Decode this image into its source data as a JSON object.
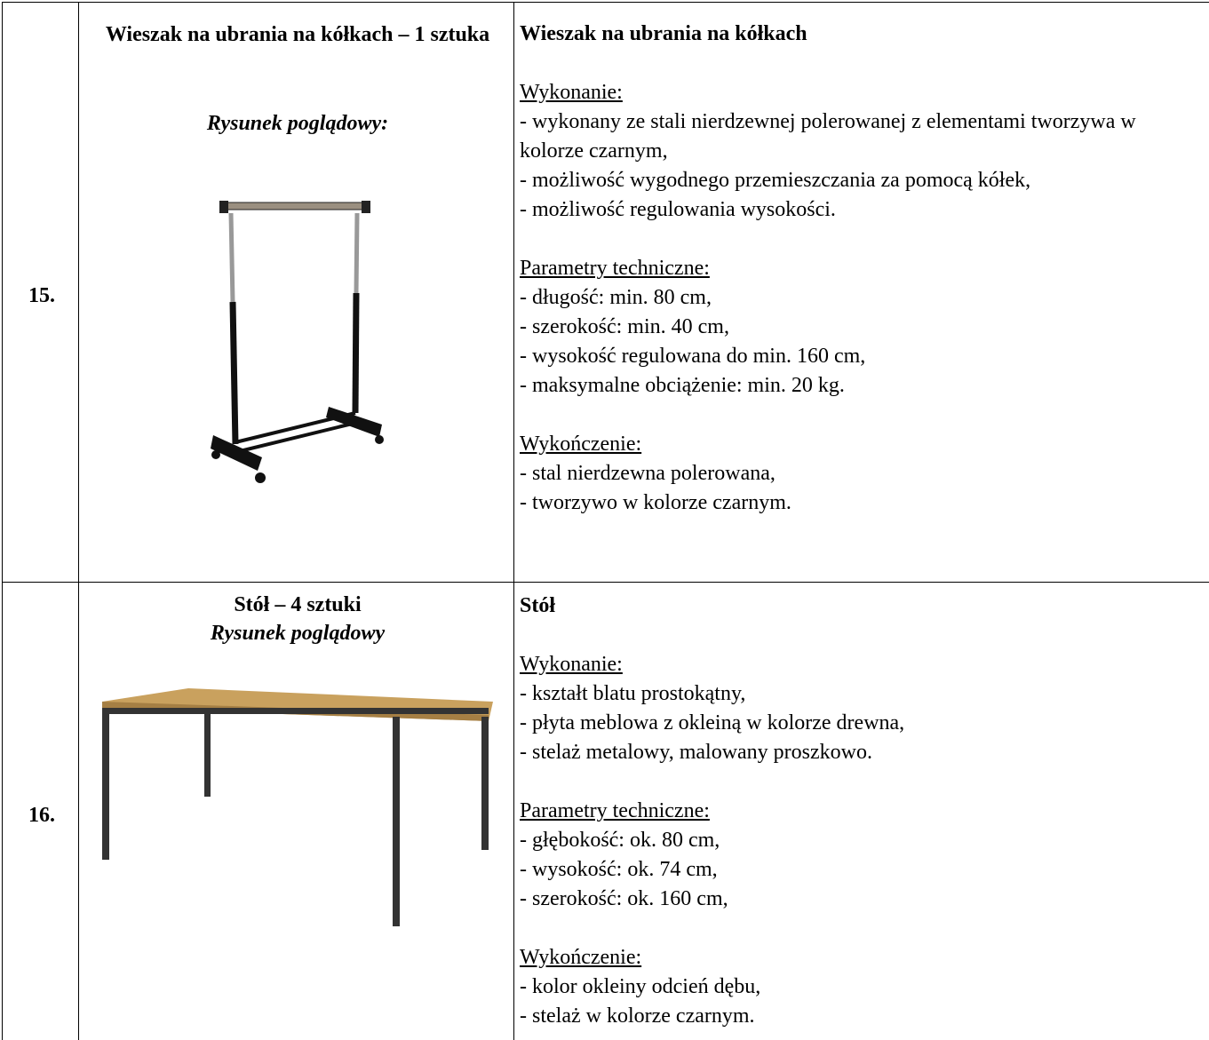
{
  "table": {
    "rows": [
      {
        "number": "15.",
        "name": "Wieszak na ubrania na kółkach – 1 sztuka",
        "drawing_label": "Rysunek poglądowy:",
        "heading": "Wieszak na ubrania na kółkach",
        "sections": [
          {
            "title": "Wykonanie:",
            "items": [
              "- wykonany ze stali nierdzewnej polerowanej z elementami tworzywa w kolorze czarnym,",
              "- możliwość wygodnego przemieszczania za pomocą kółek,",
              "- możliwość regulowania wysokości."
            ]
          },
          {
            "title": "Parametry techniczne:",
            "items": [
              "- długość: min. 80 cm,",
              "- szerokość: min. 40 cm,",
              "- wysokość regulowana do min. 160 cm,",
              "- maksymalne obciążenie: min. 20 kg."
            ]
          },
          {
            "title": "Wykończenie:",
            "items": [
              "- stal nierdzewna polerowana,",
              "- tworzywo w kolorze czarnym."
            ]
          }
        ]
      },
      {
        "number": "16.",
        "name": "Stół – 4 sztuki",
        "drawing_label": "Rysunek poglądowy",
        "heading": "Stół",
        "sections": [
          {
            "title": "Wykonanie:",
            "items": [
              "- kształt blatu prostokątny,",
              "- płyta meblowa z okleiną w kolorze drewna,",
              "- stelaż metalowy, malowany proszkowo."
            ]
          },
          {
            "title": "Parametry techniczne:",
            "items": [
              "- głębokość: ok. 80 cm,",
              "- wysokość: ok. 74 cm,",
              "- szerokość: ok. 160 cm,"
            ]
          },
          {
            "title": "Wykończenie:",
            "items": [
              "- kolor okleiny odcień dębu,",
              "- stelaż w kolorze czarnym."
            ]
          }
        ]
      }
    ]
  }
}
